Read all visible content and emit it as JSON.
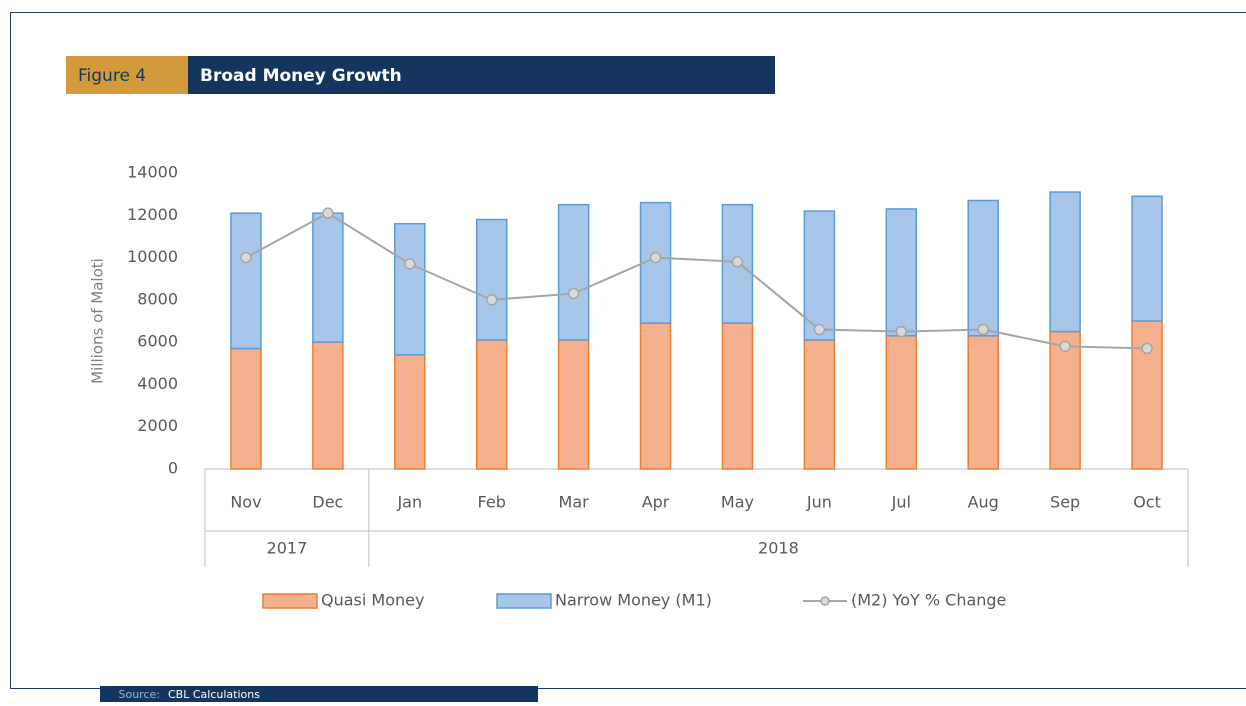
{
  "header": {
    "figure": "Figure 4",
    "title": "Broad Money Growth"
  },
  "source": {
    "label": "Source:",
    "text": "CBL Calculations"
  },
  "chart_data": {
    "type": "bar",
    "stacked": true,
    "y_label": "Millions of Maloti",
    "categories": [
      "Nov",
      "Dec",
      "Jan",
      "Feb",
      "Mar",
      "Apr",
      "May",
      "Jun",
      "Jul",
      "Aug",
      "Sep",
      "Oct"
    ],
    "category_groups": [
      "2017",
      "2017",
      "2018",
      "2018",
      "2018",
      "2018",
      "2018",
      "2018",
      "2018",
      "2018",
      "2018",
      "2018"
    ],
    "series": [
      {
        "name": "Quasi Money",
        "type": "bar",
        "color": "#f5b08e",
        "stroke": "#ed7d31",
        "values": [
          5700,
          6000,
          5400,
          6100,
          6100,
          6900,
          6900,
          6100,
          6300,
          6300,
          6500,
          7000
        ]
      },
      {
        "name": "Narrow Money (M1)",
        "type": "bar",
        "color": "#a8c6ea",
        "stroke": "#5b9bd5",
        "values": [
          6400,
          6100,
          6200,
          5700,
          6400,
          5700,
          5600,
          6100,
          6000,
          6400,
          6600,
          5900
        ]
      },
      {
        "name": "(M2) YoY % Change",
        "type": "line",
        "color": "#a5a5a5",
        "values": [
          10000,
          12100,
          9700,
          8000,
          8300,
          10000,
          9800,
          6600,
          6500,
          6600,
          5800,
          5700
        ]
      }
    ],
    "ylim": [
      0,
      14000
    ],
    "yticks": [
      0,
      2000,
      4000,
      6000,
      8000,
      10000,
      12000,
      14000
    ],
    "grid": false,
    "legend": "bottom"
  }
}
